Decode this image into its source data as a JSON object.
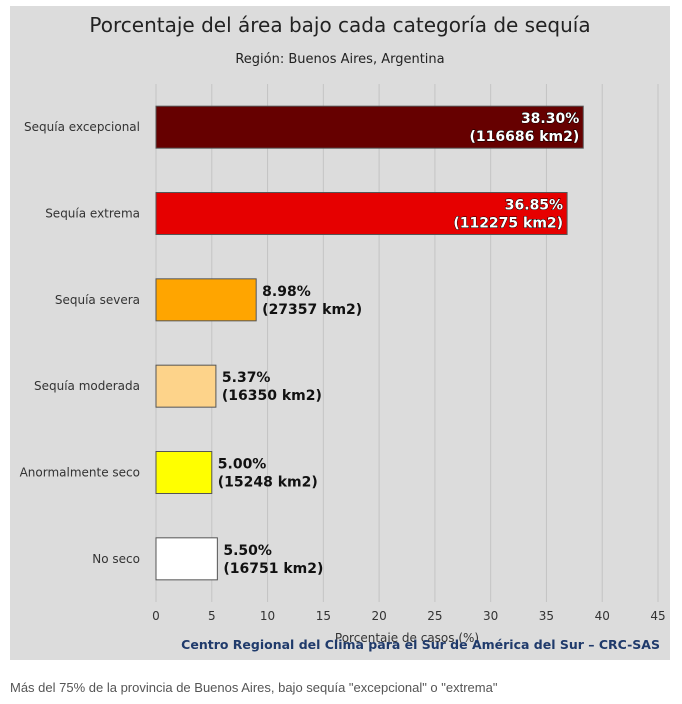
{
  "chart_data": {
    "type": "bar",
    "orientation": "horizontal",
    "title": "Porcentaje del área bajo cada categoría de sequía",
    "subtitle": "Región: Buenos Aires, Argentina",
    "xlabel": "Porcentaje de casos (%)",
    "ylabel": "",
    "xlim": [
      0,
      45
    ],
    "xticks": [
      0,
      5,
      10,
      15,
      20,
      25,
      30,
      35,
      40,
      45
    ],
    "grid": true,
    "categories": [
      "Sequía excepcional",
      "Sequía extrema",
      "Sequía severa",
      "Sequía moderada",
      "Anormalmente seco",
      "No seco"
    ],
    "values": [
      38.3,
      36.85,
      8.98,
      5.37,
      5.0,
      5.5
    ],
    "labels_pct": [
      "38.30%",
      "36.85%",
      "8.98%",
      "5.37%",
      "5.00%",
      "5.50%"
    ],
    "labels_area": [
      "(116686 km2)",
      "(112275 km2)",
      "(27357 km2)",
      "(16350 km2)",
      "(15248 km2)",
      "(16751 km2)"
    ],
    "colors": [
      "#660000",
      "#e60000",
      "#ffa500",
      "#fdd38a",
      "#ffff00",
      "#ffffff"
    ],
    "label_inside": [
      true,
      true,
      false,
      false,
      false,
      false
    ],
    "source": "Centro Regional del Clima para el Sur de América del Sur – CRC-SAS"
  },
  "caption": "Más del 75% de la provincia de Buenos Aires, bajo sequía \"excepcional\" o \"extrema\""
}
